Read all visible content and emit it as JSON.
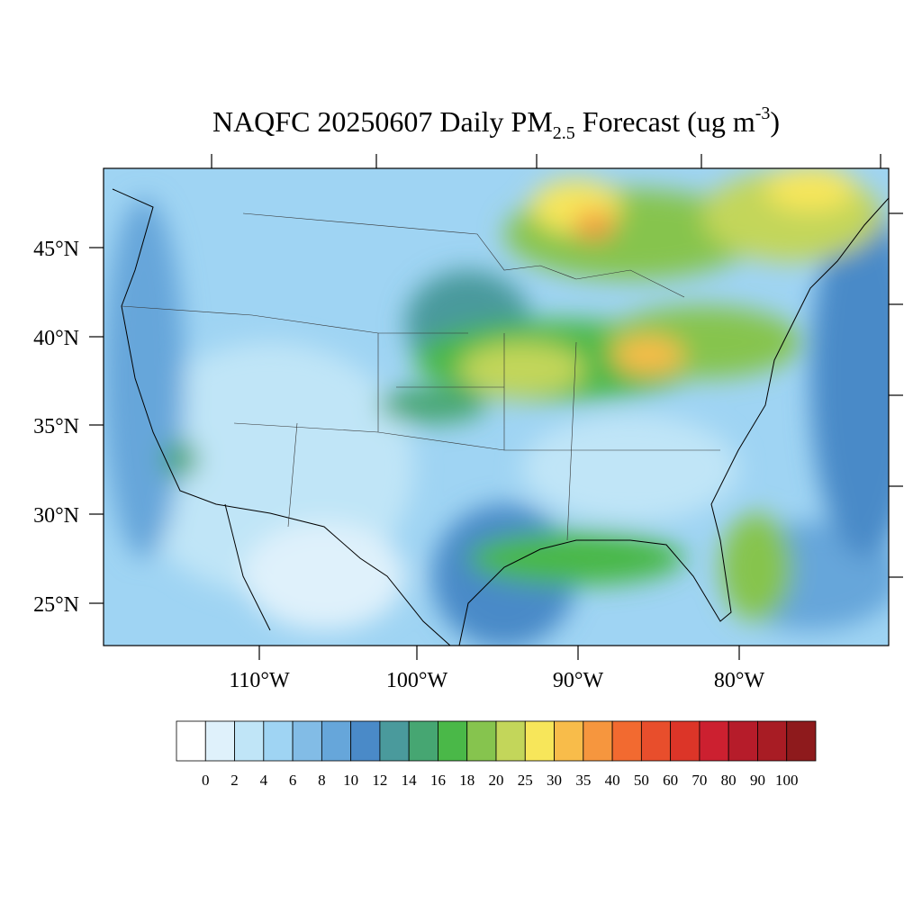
{
  "title": {
    "main": "NAQFC 20250607 Daily PM",
    "sub": "2.5",
    "rest": " Forecast (ug m",
    "sup": "-3",
    "end": ")"
  },
  "lat_labels": [
    "45°N",
    "40°N",
    "35°N",
    "30°N",
    "25°N"
  ],
  "lon_labels": [
    "110°W",
    "100°W",
    "90°W",
    "80°W"
  ],
  "colorbar": {
    "labels": [
      "0",
      "2",
      "4",
      "6",
      "8",
      "10",
      "12",
      "14",
      "16",
      "18",
      "20",
      "25",
      "30",
      "35",
      "40",
      "50",
      "60",
      "70",
      "80",
      "90",
      "100"
    ],
    "colors": [
      "#ffffff",
      "#dff1fb",
      "#c0e5f7",
      "#9fd4f3",
      "#82bce6",
      "#66a6da",
      "#4a8ac8",
      "#4a9a9c",
      "#46a672",
      "#4ab848",
      "#86c44e",
      "#c3d65a",
      "#f7e65a",
      "#f8bc4a",
      "#f6963e",
      "#f26a30",
      "#e84e2c",
      "#dc3528",
      "#cc2030",
      "#b61c2a",
      "#a81c24",
      "#8e1a1c"
    ]
  }
}
